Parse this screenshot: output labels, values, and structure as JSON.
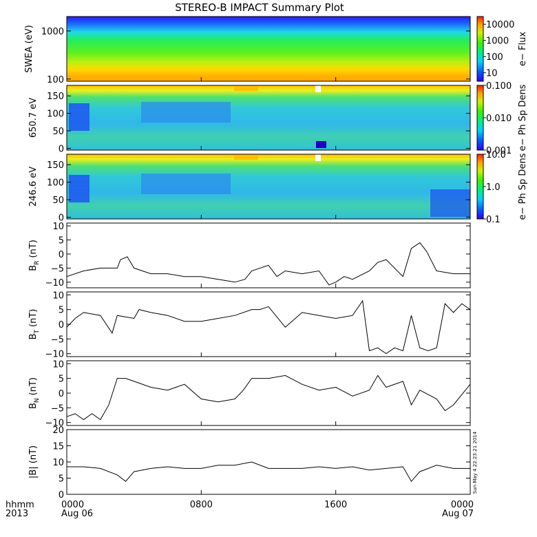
{
  "title": "STEREO-B IMPACT Summary Plot",
  "x_axis": {
    "prefix_top": "hhmm",
    "prefix_bottom": "2013",
    "ticks": [
      {
        "t": 0,
        "top": "0000",
        "bottom": "Aug 06"
      },
      {
        "t": 8,
        "top": "0800",
        "bottom": ""
      },
      {
        "t": 16,
        "top": "1600",
        "bottom": ""
      },
      {
        "t": 24,
        "top": "0000",
        "bottom": "Aug 07"
      }
    ]
  },
  "timestamp": "Sun May  4 22:23:21 2014",
  "colors": {
    "line": "#000000",
    "frame": "#000000"
  },
  "chart_data": [
    {
      "type": "heatmap",
      "id": "swea",
      "ylabel": "SWEA (eV)",
      "yscale": "log",
      "ylim": [
        90,
        2000
      ],
      "yticks": [
        {
          "v": 100,
          "label": "100"
        },
        {
          "v": 1000,
          "label": "1000"
        }
      ],
      "colorbar": {
        "label": "e− Flux",
        "scale": "log",
        "range": [
          3,
          30000
        ],
        "ticks": [
          {
            "v": 10,
            "label": "10"
          },
          {
            "v": 100,
            "label": "100"
          },
          {
            "v": 1000,
            "label": "1000"
          },
          {
            "v": 10000,
            "label": "10000"
          }
        ]
      },
      "description_bands": [
        {
          "y_from": 1300,
          "y_to": 2000,
          "level": "low"
        },
        {
          "y_from": 700,
          "y_to": 1300,
          "level": "medium-low"
        },
        {
          "y_from": 200,
          "y_to": 700,
          "level": "medium"
        },
        {
          "y_from": 90,
          "y_to": 200,
          "level": "high"
        }
      ]
    },
    {
      "type": "heatmap",
      "id": "pad650",
      "ylabel": "650.7 eV",
      "yscale": "linear",
      "ylim": [
        -5,
        180
      ],
      "yticks": [
        {
          "v": 0,
          "label": "0"
        },
        {
          "v": 50,
          "label": "50"
        },
        {
          "v": 100,
          "label": "100"
        },
        {
          "v": 150,
          "label": "150"
        }
      ],
      "colorbar": {
        "label": "e− Ph Sp Dens",
        "scale": "log",
        "range": [
          0.001,
          0.1
        ],
        "ticks": [
          {
            "v": 0.001,
            "label": "0.001"
          },
          {
            "v": 0.01,
            "label": "0.010"
          },
          {
            "v": 0.1,
            "label": "0.100"
          }
        ]
      }
    },
    {
      "type": "heatmap",
      "id": "pad246",
      "ylabel": "246.6 eV",
      "yscale": "linear",
      "ylim": [
        -5,
        180
      ],
      "yticks": [
        {
          "v": 0,
          "label": "0"
        },
        {
          "v": 50,
          "label": "50"
        },
        {
          "v": 100,
          "label": "100"
        },
        {
          "v": 150,
          "label": "150"
        }
      ],
      "colorbar": {
        "label": "e− Ph Sp Dens",
        "scale": "log",
        "range": [
          0.1,
          10
        ],
        "ticks": [
          {
            "v": 0.1,
            "label": "0.1"
          },
          {
            "v": 1,
            "label": "1.0"
          },
          {
            "v": 10,
            "label": "10.0"
          }
        ]
      }
    },
    {
      "type": "line",
      "id": "br",
      "ylabel_main": "B",
      "ylabel_sub": "R",
      "ylabel_unit": "(nT)",
      "ylim": [
        -12,
        11
      ],
      "yticks": [
        {
          "v": -10,
          "label": "−10"
        },
        {
          "v": -5,
          "label": "−5"
        },
        {
          "v": 0,
          "label": "0"
        },
        {
          "v": 5,
          "label": "5"
        },
        {
          "v": 10,
          "label": "10"
        }
      ],
      "x": [
        0,
        1,
        2,
        3,
        3.2,
        3.6,
        4,
        5,
        6,
        7,
        8,
        9,
        10,
        10.6,
        11,
        12,
        12.5,
        13,
        14,
        15,
        15.6,
        16,
        16.5,
        17,
        18,
        18.5,
        19,
        20,
        20.5,
        21,
        21.4,
        22,
        23,
        24
      ],
      "y": [
        -8,
        -6,
        -5,
        -5,
        -2,
        -1,
        -5,
        -7,
        -7,
        -8,
        -8,
        -9,
        -10,
        -9,
        -6,
        -4,
        -8,
        -6,
        -7,
        -6,
        -11,
        -10,
        -8,
        -9,
        -6,
        -3,
        -2,
        -8,
        2,
        4,
        1,
        -6,
        -7,
        -7
      ]
    },
    {
      "type": "line",
      "id": "bt",
      "ylabel_main": "B",
      "ylabel_sub": "T",
      "ylabel_unit": "(nT)",
      "ylim": [
        -11,
        11
      ],
      "yticks": [
        {
          "v": -10,
          "label": "−10"
        },
        {
          "v": -5,
          "label": "−5"
        },
        {
          "v": 0,
          "label": "0"
        },
        {
          "v": 5,
          "label": "5"
        },
        {
          "v": 10,
          "label": "10"
        }
      ],
      "x": [
        0,
        0.5,
        1,
        2,
        2.7,
        3,
        4,
        4.3,
        5,
        6,
        7,
        8,
        9,
        10,
        11,
        11.5,
        12,
        13,
        14,
        15,
        16,
        17,
        17.6,
        18,
        18.5,
        19,
        19.5,
        20,
        20.5,
        21,
        21.5,
        22,
        22.5,
        23,
        23.5,
        24
      ],
      "y": [
        -1,
        2,
        4,
        3,
        -3,
        3,
        2,
        5,
        4,
        3,
        1,
        1,
        2,
        3,
        5,
        5,
        6,
        -1,
        4,
        3,
        2,
        3,
        8,
        -9,
        -8,
        -10,
        -8,
        -9,
        3,
        -8,
        -9,
        -8,
        7,
        4,
        7,
        5
      ]
    },
    {
      "type": "line",
      "id": "bn",
      "ylabel_main": "B",
      "ylabel_sub": "N",
      "ylabel_unit": "(nT)",
      "ylim": [
        -11,
        11
      ],
      "yticks": [
        {
          "v": -10,
          "label": "−10"
        },
        {
          "v": -5,
          "label": "−5"
        },
        {
          "v": 0,
          "label": "0"
        },
        {
          "v": 5,
          "label": "5"
        },
        {
          "v": 10,
          "label": "10"
        }
      ],
      "x": [
        0,
        0.5,
        1,
        1.5,
        2,
        2.5,
        3,
        3.5,
        4,
        5,
        6,
        7,
        8,
        9,
        10,
        10.5,
        11,
        12,
        13,
        14,
        15,
        16,
        17,
        18,
        18.5,
        19,
        20,
        20.5,
        21,
        22,
        22.5,
        23,
        24
      ],
      "y": [
        -8,
        -7,
        -9,
        -7,
        -9,
        -4,
        5,
        5,
        4,
        2,
        1,
        3,
        -2,
        -3,
        -2,
        1,
        5,
        5,
        6,
        3,
        1,
        2,
        -1,
        1,
        6,
        2,
        4,
        -4,
        1,
        -2,
        -6,
        -4,
        3
      ]
    },
    {
      "type": "line",
      "id": "bmag",
      "ylabel_main": "|B| (nT)",
      "ylim": [
        0,
        20
      ],
      "yticks": [
        {
          "v": 0,
          "label": "0"
        },
        {
          "v": 5,
          "label": "5"
        },
        {
          "v": 10,
          "label": "10"
        },
        {
          "v": 15,
          "label": "15"
        },
        {
          "v": 20,
          "label": "20"
        }
      ],
      "x": [
        0,
        1,
        2,
        3,
        3.5,
        4,
        5,
        6,
        7,
        8,
        9,
        10,
        11,
        12,
        13,
        14,
        15,
        16,
        17,
        18,
        19,
        20,
        20.5,
        21,
        22,
        23,
        24
      ],
      "y": [
        8.5,
        8.5,
        8,
        6,
        4,
        7,
        8,
        8.5,
        8,
        8,
        9,
        9,
        10,
        8,
        8,
        8,
        8.5,
        8,
        8.5,
        7.5,
        8,
        8.5,
        4,
        7,
        9,
        8,
        8
      ]
    }
  ]
}
